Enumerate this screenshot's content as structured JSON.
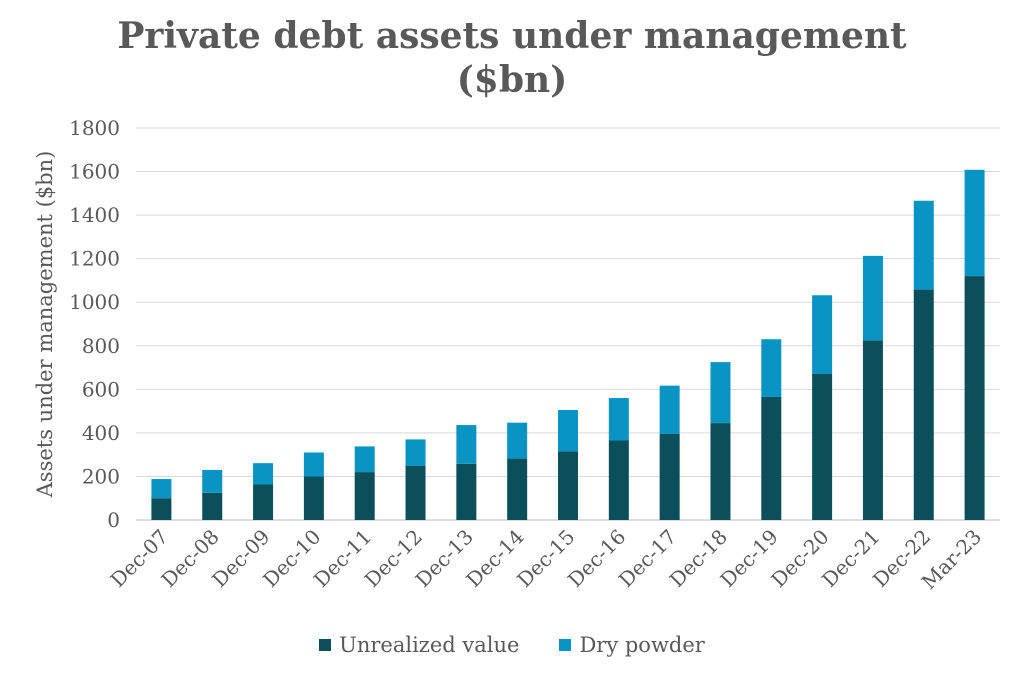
{
  "chart_data": {
    "type": "bar",
    "stacked": true,
    "title_line1": "Private debt assets under management",
    "title_line2": "($bn)",
    "ylabel": "Assets under management ($bn)",
    "xlabel": "",
    "ylim": [
      0,
      1800
    ],
    "yticks": [
      0,
      200,
      400,
      600,
      800,
      1000,
      1200,
      1400,
      1600,
      1800
    ],
    "grid": true,
    "legend_position": "bottom",
    "categories": [
      "Dec-07",
      "Dec-08",
      "Dec-09",
      "Dec-10",
      "Dec-11",
      "Dec-12",
      "Dec-13",
      "Dec-14",
      "Dec-15",
      "Dec-16",
      "Dec-17",
      "Dec-18",
      "Dec-19",
      "Dec-20",
      "Dec-21",
      "Dec-22",
      "Mar-23"
    ],
    "series": [
      {
        "name": "Unrealized value",
        "color": "#0a4f5a",
        "values": [
          100,
          125,
          163,
          200,
          220,
          248,
          258,
          282,
          315,
          365,
          395,
          445,
          565,
          672,
          825,
          1058,
          1120
        ]
      },
      {
        "name": "Dry powder",
        "color": "#0a94c3",
        "values": [
          88,
          105,
          98,
          110,
          118,
          122,
          178,
          165,
          190,
          195,
          222,
          280,
          265,
          360,
          388,
          408,
          488
        ]
      }
    ]
  }
}
